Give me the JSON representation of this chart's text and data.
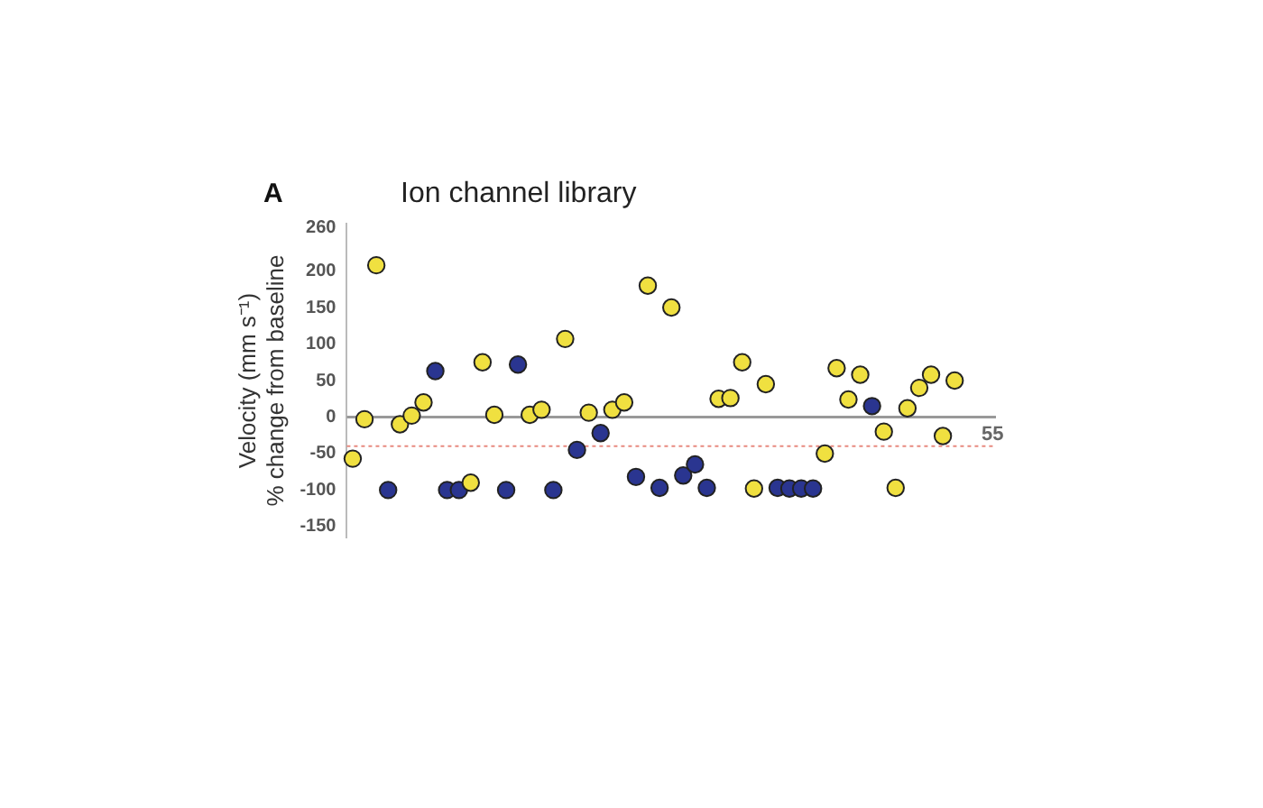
{
  "chart_data": {
    "type": "scatter",
    "title": "Ion channel library",
    "ylabel": "Velocity (mm s⁻¹)\n% change from baseline",
    "annotations": [
      "A",
      "55"
    ],
    "categories": [
      null,
      null,
      null,
      null,
      null,
      null,
      null,
      null,
      null,
      null,
      null,
      null,
      null,
      null,
      null,
      null,
      null,
      null,
      null,
      null,
      null,
      null,
      null,
      null,
      null,
      null,
      null,
      null,
      null,
      null,
      null,
      null,
      null,
      null,
      null,
      null,
      null,
      null,
      null,
      null,
      null,
      null,
      null,
      null,
      null,
      null,
      null,
      null,
      null,
      null,
      null,
      null,
      null,
      null,
      null
    ],
    "ylim": [
      -165,
      265
    ],
    "yticks": [
      -150,
      -100,
      -50,
      0,
      50,
      100,
      150,
      200,
      260
    ],
    "grid": false,
    "legend": false,
    "marker": "circle",
    "ref_lines": [
      {
        "axis": "y",
        "value": 0,
        "color": "#999999",
        "line_style": "solid"
      },
      {
        "axis": "y",
        "value": -40,
        "color": "#e88a80",
        "line_style": "dotted"
      }
    ],
    "series": [
      {
        "color": "#f0e040",
        "values": [
          -57,
          -3,
          208,
          null,
          -10,
          2,
          20,
          null,
          null,
          null,
          -90,
          75,
          3,
          null,
          null,
          3,
          10,
          null,
          107,
          null,
          6,
          null,
          10,
          20,
          null,
          180,
          null,
          150,
          null,
          null,
          null,
          25,
          26,
          75,
          -98,
          45,
          null,
          null,
          null,
          null,
          -50,
          67,
          24,
          58,
          null,
          -20,
          -97,
          12,
          40,
          58,
          -26,
          50,
          null,
          null,
          null
        ]
      },
      {
        "color": "#2a3590",
        "values": [
          null,
          null,
          null,
          -100,
          null,
          null,
          null,
          63,
          -100,
          -100,
          null,
          null,
          null,
          -100,
          72,
          null,
          null,
          -100,
          null,
          -45,
          null,
          -22,
          null,
          null,
          -82,
          null,
          -97,
          null,
          -80,
          -65,
          -97,
          null,
          null,
          null,
          null,
          null,
          -97,
          -98,
          -98,
          -98,
          null,
          null,
          null,
          null,
          15,
          null,
          null,
          null,
          null,
          null,
          null,
          null,
          null,
          null,
          null
        ]
      }
    ]
  }
}
